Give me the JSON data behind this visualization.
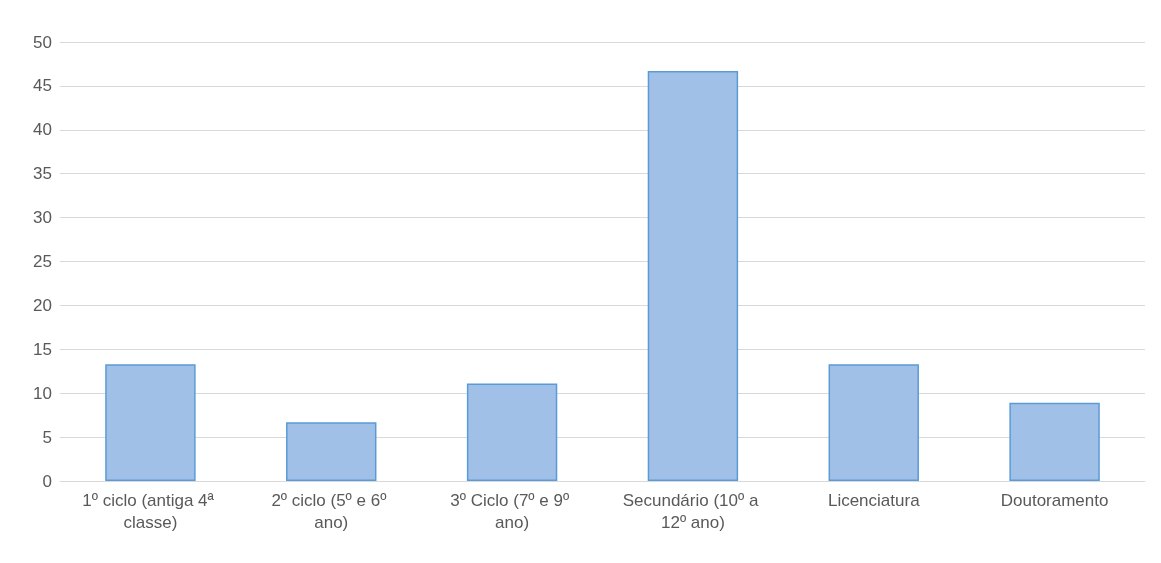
{
  "chart_data": {
    "type": "bar",
    "categories": [
      "1º ciclo (antiga 4ª classe)",
      "2º ciclo (5º e 6º ano)",
      "3º Ciclo (7º e 9º ano)",
      "Secundário (10º a 12º ano)",
      "Licenciatura",
      "Doutoramento"
    ],
    "values": [
      13.3,
      6.7,
      11.1,
      46.7,
      13.3,
      8.9
    ],
    "color": "#a0c0e8",
    "ylim": [
      0,
      50
    ],
    "yticks": [
      0,
      5,
      10,
      15,
      20,
      25,
      30,
      35,
      40,
      45,
      50
    ],
    "grid": "y"
  }
}
